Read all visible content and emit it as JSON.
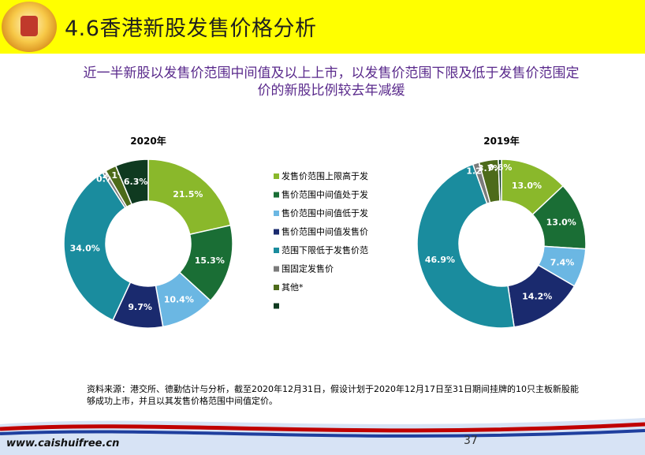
{
  "title": "4.6香港新股发售价格分析",
  "headline": {
    "line1": "近一半新股以发售价范围中间值及以上上市，以发售价范围下限及低于发售价范围定",
    "line2": "价的新股比例较去年减缓"
  },
  "legend": {
    "items": [
      {
        "label": "发售价范围上限高于发",
        "color": "#8ab82b"
      },
      {
        "label": "售价范围中间值处于发",
        "color": "#1a6e35"
      },
      {
        "label": "售价范围中间值低于发",
        "color": "#6bb7e3"
      },
      {
        "label": "售价范围中间值发售价",
        "color": "#1a2a6e"
      },
      {
        "label": "范围下限低于发售价范",
        "color": "#1a8c9e"
      },
      {
        "label": "围固定发售价",
        "color": "#7b7b7b"
      },
      {
        "label": "其他*",
        "color": "#4d6b1a"
      },
      {
        "label": "",
        "color": "#0f3a20"
      }
    ]
  },
  "chart_data": [
    {
      "type": "pie",
      "title": "2020年",
      "donut": true,
      "slices": [
        {
          "label": "21.5%",
          "value": 21.5,
          "color": "#8ab82b"
        },
        {
          "label": "15.3%",
          "value": 15.3,
          "color": "#1a6e35"
        },
        {
          "label": "10.4%",
          "value": 10.4,
          "color": "#6bb7e3"
        },
        {
          "label": "9.7%",
          "value": 9.7,
          "color": "#1a2a6e"
        },
        {
          "label": "34.0%",
          "value": 34.0,
          "color": "#1a8c9e"
        },
        {
          "label": "0.7%",
          "value": 0.7,
          "color": "#7b7b7b"
        },
        {
          "label": "2.1%",
          "value": 2.1,
          "color": "#4d6b1a"
        },
        {
          "label": "6.3%",
          "value": 6.3,
          "color": "#0f3a20"
        }
      ]
    },
    {
      "type": "pie",
      "title": "2019年",
      "donut": true,
      "slices": [
        {
          "label": "13.0%",
          "value": 13.0,
          "color": "#8ab82b"
        },
        {
          "label": "13.0%",
          "value": 13.0,
          "color": "#1a6e35"
        },
        {
          "label": "7.4%",
          "value": 7.4,
          "color": "#6bb7e3"
        },
        {
          "label": "14.2%",
          "value": 14.2,
          "color": "#1a2a6e"
        },
        {
          "label": "46.9%",
          "value": 46.9,
          "color": "#1a8c9e"
        },
        {
          "label": "1.2%",
          "value": 1.2,
          "color": "#7b7b7b"
        },
        {
          "label": "3.7%",
          "value": 3.7,
          "color": "#4d6b1a"
        },
        {
          "label": "0.6%",
          "value": 0.6,
          "color": "#0f3a20"
        }
      ]
    }
  ],
  "footnote": {
    "line1": "资料来源：港交所、德勤估计与分析，截至2020年12月31日，假设计划于2020年12月17日至31日期间挂牌的10只主板新股能",
    "line2": "够成功上市，并且以其发售价格范围中间值定价。"
  },
  "page_number": "37",
  "site_url": "www.caishuifree.cn"
}
